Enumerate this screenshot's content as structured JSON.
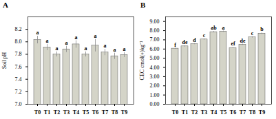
{
  "chart_data": [
    {
      "type": "bar",
      "title": "A",
      "ylabel": "Soil pH",
      "categories": [
        "T0",
        "T1",
        "T2",
        "T3",
        "T4",
        "T5",
        "T6",
        "T7",
        "T8",
        "T9"
      ],
      "values": [
        8.03,
        7.91,
        7.8,
        7.88,
        7.96,
        7.8,
        7.94,
        7.83,
        7.77,
        7.79
      ],
      "errors": [
        0.06,
        0.05,
        0.04,
        0.05,
        0.06,
        0.04,
        0.1,
        0.05,
        0.05,
        0.04
      ],
      "annotations": [
        "a",
        "a",
        "a",
        "a",
        "a",
        "a",
        "a",
        "a",
        "a",
        "a"
      ],
      "color": "#d4d4c8",
      "ylim": [
        7.0,
        8.4
      ],
      "yticks": [
        {
          "value": 7.0,
          "label": "7.0"
        },
        7.2,
        7.4,
        7.6,
        7.8,
        {
          "value": 8.0,
          "label": "8.0"
        },
        8.2
      ],
      "grid": false
    },
    {
      "type": "bar",
      "title": "B",
      "ylabel": "CEC cmol(+)kg⁻¹",
      "categories": [
        "T0",
        "T1",
        "T2",
        "T3",
        "T4",
        "T5",
        "T6",
        "T7",
        "T8",
        "T9"
      ],
      "values": [
        6.05,
        6.3,
        6.55,
        7.05,
        7.85,
        7.9,
        6.12,
        6.48,
        7.28,
        7.68
      ],
      "errors": [
        0.05,
        0.06,
        0.06,
        0.07,
        0.07,
        0.07,
        0.06,
        0.06,
        0.07,
        0.07
      ],
      "annotations": [
        "f",
        "de",
        "d",
        "c",
        "ab",
        "a",
        "ef",
        "de",
        "c",
        "b"
      ],
      "color": "#d4d4c8",
      "ylim": [
        0,
        9.5
      ],
      "yticks": [
        {
          "value": 0,
          "label": "0.00"
        },
        {
          "value": 1,
          "label": "1.00"
        },
        {
          "value": 2,
          "label": "2.00"
        },
        {
          "value": 3,
          "label": "3.00"
        },
        {
          "value": 4,
          "label": "4.00"
        },
        {
          "value": 5,
          "label": "5.00"
        },
        {
          "value": 6,
          "label": "6.00"
        },
        {
          "value": 7,
          "label": "7.00"
        },
        {
          "value": 8,
          "label": "8.00"
        },
        {
          "value": 9,
          "label": "9.00"
        }
      ],
      "grid": false
    }
  ]
}
